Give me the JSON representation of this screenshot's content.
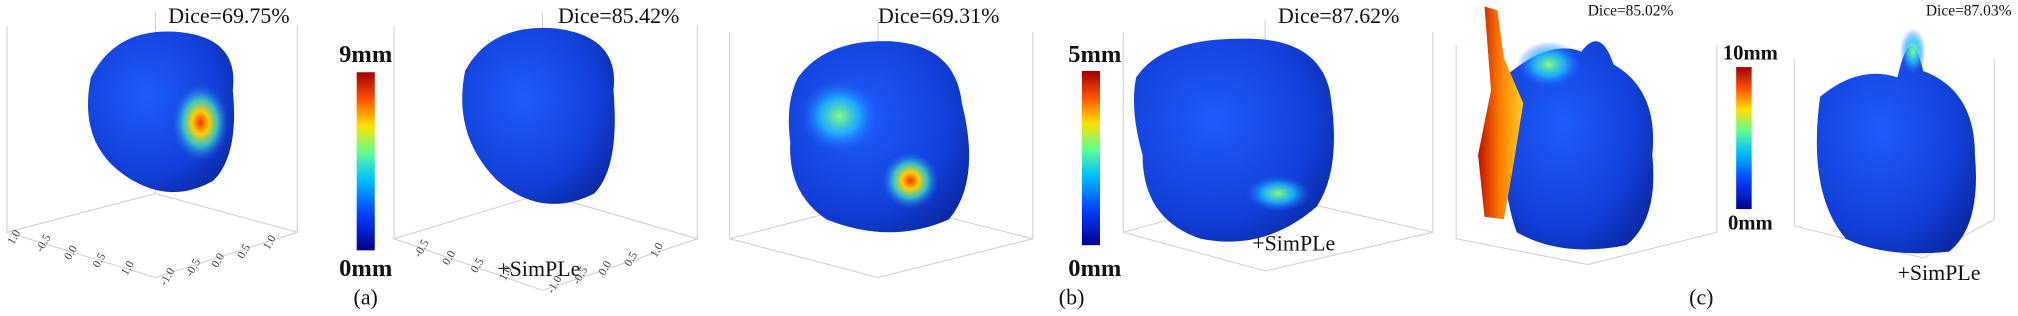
{
  "panels": [
    {
      "dice": "Dice=69.75%",
      "x_ticks": [
        "1.0",
        "-0.5",
        "0.0",
        "0.5",
        "1.0"
      ],
      "y_ticks": [
        "-1.0",
        "-0.5",
        "0.0",
        "0.5",
        "1.0"
      ]
    },
    {
      "dice": "Dice=85.42%",
      "x_ticks": [
        "-0.5",
        "0.0",
        "0.5",
        "1.0"
      ],
      "y_ticks": [
        "-1.0",
        "-0.5",
        "0.0",
        "0.5",
        "1.0"
      ]
    },
    {
      "dice": "Dice=69.31%"
    },
    {
      "dice": "Dice=87.62%"
    },
    {
      "dice": "Dice=85.02%"
    },
    {
      "dice": "Dice=87.03%"
    }
  ],
  "colorbars": [
    {
      "max": "9mm",
      "min": "0mm"
    },
    {
      "max": "5mm",
      "min": "0mm"
    },
    {
      "max": "10mm",
      "min": "0mm"
    }
  ],
  "captions": [
    "(a)",
    "(b)",
    "(c)"
  ],
  "method_labels": [
    "+SimPLe",
    "+SimPLe",
    "+SimPLe"
  ]
}
